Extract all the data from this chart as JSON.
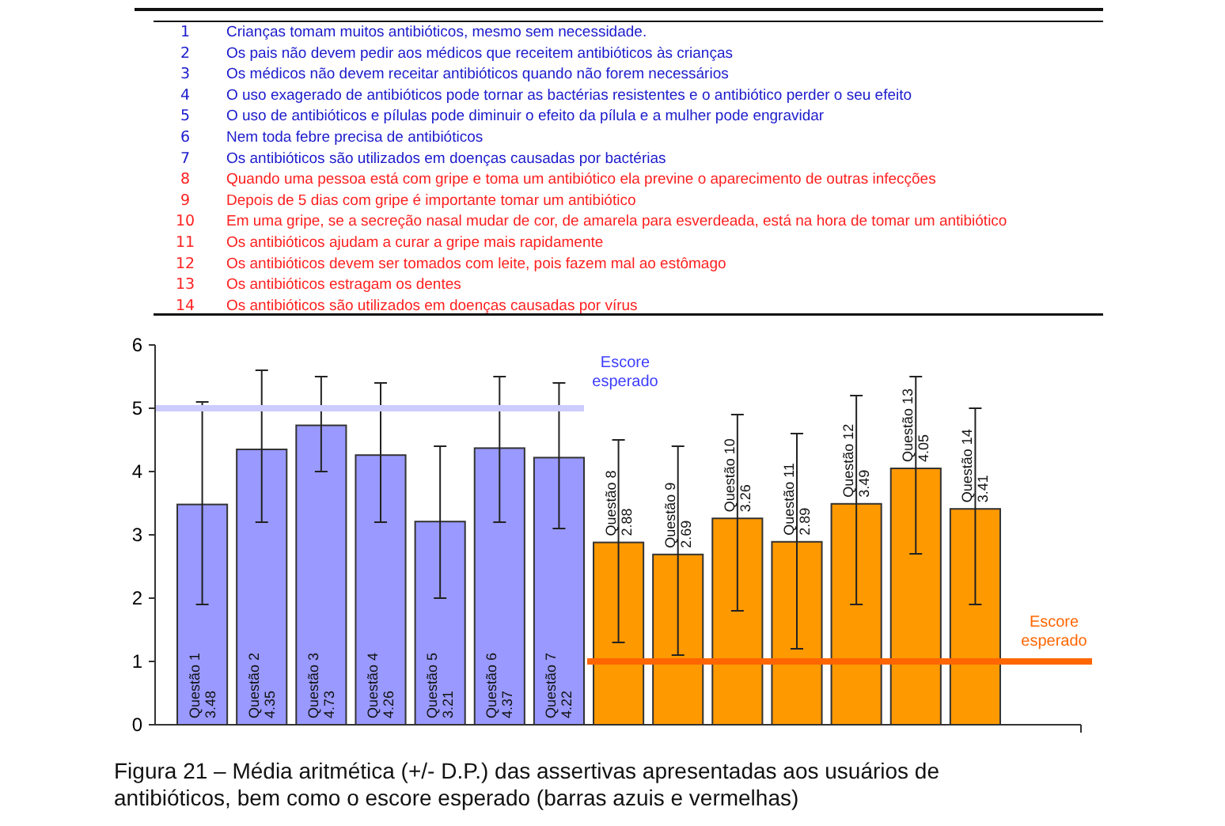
{
  "chart_data": {
    "type": "bar",
    "categories": [
      "Questão 1",
      "Questão 2",
      "Questão 3",
      "Questão 4",
      "Questão 5",
      "Questão 6",
      "Questão 7",
      "Questão 8",
      "Questão 9",
      "Questão 10",
      "Questão 11",
      "Questão 12",
      "Questão 13",
      "Questão 14"
    ],
    "values": [
      3.48,
      4.35,
      4.73,
      4.26,
      3.21,
      4.37,
      4.22,
      2.88,
      2.69,
      3.26,
      2.89,
      3.49,
      4.05,
      3.41
    ],
    "colors": [
      "#9999ff",
      "#9999ff",
      "#9999ff",
      "#9999ff",
      "#9999ff",
      "#9999ff",
      "#9999ff",
      "#ff9900",
      "#ff9900",
      "#ff9900",
      "#ff9900",
      "#ff9900",
      "#ff9900",
      "#ff9900"
    ],
    "errors": [
      [
        1.9,
        5.1
      ],
      [
        3.2,
        5.6
      ],
      [
        4.0,
        5.5
      ],
      [
        3.2,
        5.4
      ],
      [
        2.0,
        4.4
      ],
      [
        3.2,
        5.5
      ],
      [
        3.1,
        5.4
      ],
      [
        1.3,
        4.5
      ],
      [
        1.1,
        4.4
      ],
      [
        1.8,
        4.9
      ],
      [
        1.2,
        4.6
      ],
      [
        1.9,
        5.2
      ],
      [
        2.7,
        5.5
      ],
      [
        1.9,
        5.0
      ]
    ],
    "data_labels": true,
    "ylim": [
      0,
      6
    ],
    "yticks": [
      0,
      1,
      2,
      3,
      4,
      5,
      6
    ],
    "ref_lines": [
      {
        "axis": "y",
        "value": 5,
        "label": "Escore esperado",
        "color": "#ccccff"
      },
      {
        "axis": "y",
        "value": 1,
        "label": "Escore esperado",
        "color": "#ff6600"
      }
    ],
    "annotations": [
      "1 Crianças tomam muitos antibióticos, mesmo sem necessidade.",
      "2 Os pais não devem pedir aos médicos que receitem antibióticos às crianças",
      "3 Os médicos não devem receitar antibióticos quando não forem necessários",
      "4 O uso exagerado de antibióticos pode tornar as bactérias resistentes e o antibiótico perder o seu efeito",
      "5 O uso de antibióticos e pílulas pode diminuir o efeito da pílula e a mulher pode engravidar",
      "6 Nem toda febre precisa de antibióticos",
      "7 Os antibióticos são utilizados em doenças causadas por bactérias",
      "8 Quando uma pessoa está com gripe e toma um antibiótico ela previne o aparecimento de outras infecções",
      "9 Depois de 5 dias com gripe é importante tomar um antibiótico",
      "10 Em uma gripe, se a secreção nasal mudar de cor, de amarela para esverdeada, está na hora de tomar um antibiótico",
      "11 Os antibióticos ajudam a curar a gripe mais rapidamente",
      "12 Os antibióticos devem ser tomados com leite, pois fazem mal ao estômago",
      "13 Os antibióticos estragam os dentes",
      "14 Os antibióticos são utilizados em doenças causadas por vírus",
      "Figura 21 – Média aritmética (+/- D.P.) das assertivas apresentadas aos usuários de antibióticos, bem como o escore esperado (barras azuis e vermelhas)"
    ],
    "grid": false
  }
}
